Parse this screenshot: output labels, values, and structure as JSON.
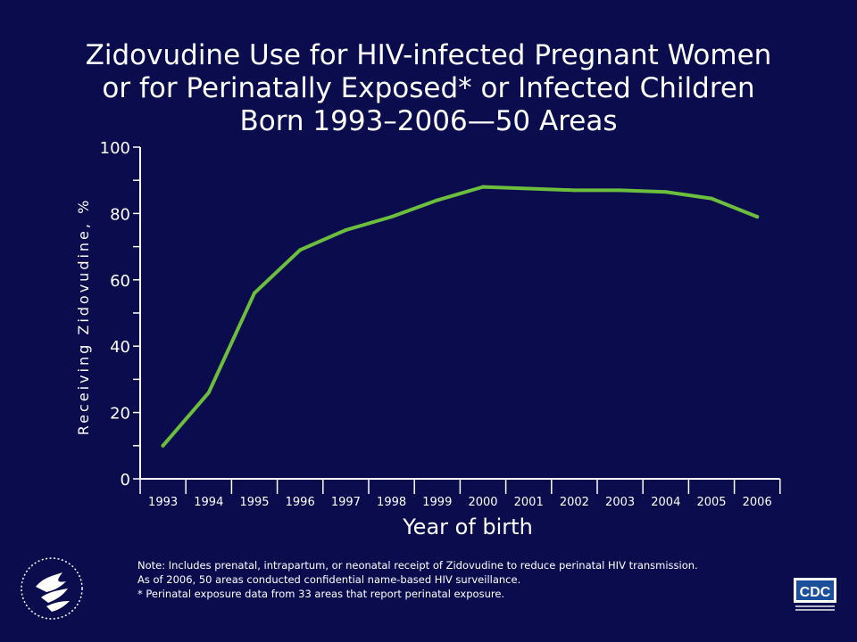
{
  "slide": {
    "title_lines": [
      "Zidovudine Use for HIV-infected Pregnant Women",
      "or for Perinatally Exposed* or Infected Children",
      "Born 1993–2006—50 Areas"
    ],
    "notes": [
      "Note: Includes prenatal, intrapartum, or neonatal receipt of Zidovudine to reduce perinatal HIV transmission.",
      "As of 2006, 50 areas conducted confidential name-based HIV surveillance.",
      "* Perinatal exposure data from 33 areas that report perinatal exposure."
    ],
    "logos": {
      "cdc_text": "CDC",
      "hhs": "hhs-eagle-seal-icon"
    },
    "colors": {
      "background": "#0b0c4e",
      "line": "#6cbf3c",
      "axis": "#ffffff",
      "text": "#ffffff"
    }
  },
  "chart_data": {
    "type": "line",
    "title": "Zidovudine Use for HIV-infected Pregnant Women or for Perinatally Exposed* or Infected Children Born 1993–2006—50 Areas",
    "xlabel": "Year of birth",
    "ylabel": "Receiving Zidovudine, %",
    "categories": [
      "1993",
      "1994",
      "1995",
      "1996",
      "1997",
      "1998",
      "1999",
      "2000",
      "2001",
      "2002",
      "2003",
      "2004",
      "2005",
      "2006"
    ],
    "values": [
      10,
      26,
      56,
      69,
      75,
      79,
      84,
      88,
      87.5,
      87,
      87,
      86.5,
      84.5,
      79
    ],
    "ylim": [
      0,
      100
    ],
    "yticks": [
      0,
      20,
      40,
      60,
      80,
      100
    ],
    "grid": false,
    "legend": "none"
  }
}
